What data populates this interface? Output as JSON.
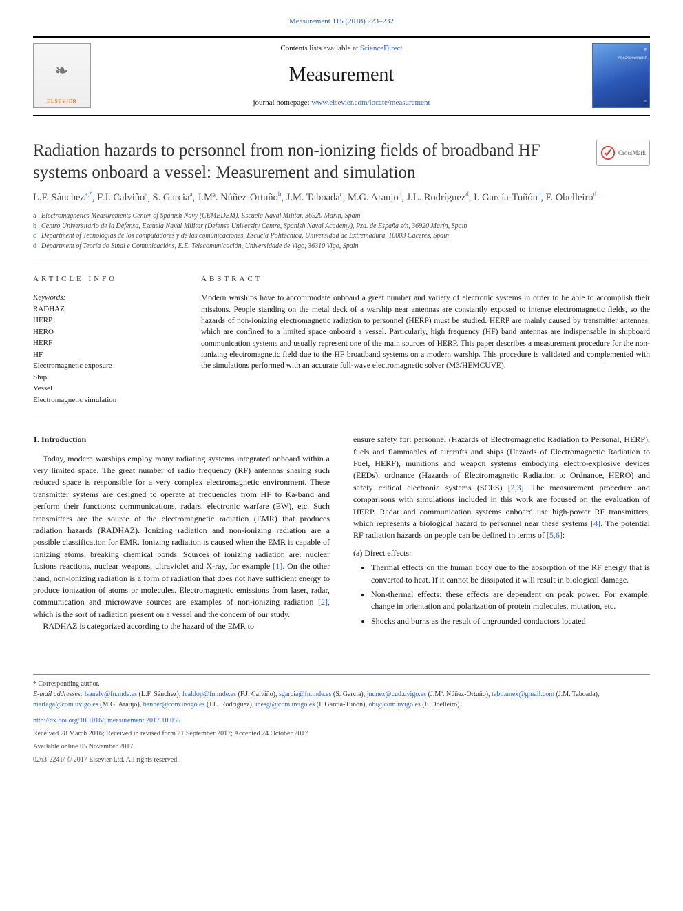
{
  "citation": {
    "text": "Measurement 115 (2018) 223–232",
    "link_color": "#2b5fc7"
  },
  "header": {
    "contents_prefix": "Contents lists available at ",
    "contents_link": "ScienceDirect",
    "journal_title": "Measurement",
    "homepage_prefix": "journal homepage: ",
    "homepage_url": "www.elsevier.com/locate/measurement",
    "elsevier_label": "ELSEVIER",
    "cover_label": "Measurement"
  },
  "crossmark_label": "CrossMark",
  "article": {
    "title": "Radiation hazards to personnel from non-ionizing fields of broadband HF systems onboard a vessel: Measurement and simulation",
    "authors_html": "L.F. Sánchez|a,*|, F.J. Calviño|a|, S. Garcia|a|, J.Mª. Núñez-Ortuño|b|, J.M. Taboada|c|, M.G. Araujo|d|, J.L. Rodríguez|d|, I. García-Tuñón|d|, F. Obelleiro|d|",
    "affiliations": [
      {
        "key": "a",
        "text": "Electromagnetics Measurements Center of Spanish Navy (CEMEDEM), Escuela Naval Militar, 36920 Marín, Spain"
      },
      {
        "key": "b",
        "text": "Centro Universitario de la Defensa, Escuela Naval Militar (Defense University Centre, Spanish Naval Academy), Pza. de España s/n, 36920 Marín, Spain"
      },
      {
        "key": "c",
        "text": "Department of Tecnologías de los computadores y de las comunicaciones, Escuela Politécnica, Universidad de Extremadura, 10003 Cáceres, Spain"
      },
      {
        "key": "d",
        "text": "Department of Teoría do Sinal e Comunicacións, E.E. Telecomunicación, Universidade de Vigo, 36310 Vigo, Spain"
      }
    ]
  },
  "article_info": {
    "heading": "ARTICLE INFO",
    "kw_label": "Keywords:",
    "keywords": [
      "RADHAZ",
      "HERP",
      "HERO",
      "HERF",
      "HF",
      "Electromagnetic exposure",
      "Ship",
      "Vessel",
      "Electromagnetic simulation"
    ]
  },
  "abstract": {
    "heading": "ABSTRACT",
    "text": "Modern warships have to accommodate onboard a great number and variety of electronic systems in order to be able to accomplish their missions. People standing on the metal deck of a warship near antennas are constantly exposed to intense electromagnetic fields, so the hazards of non-ionizing electromagnetic radiation to personnel (HERP) must be studied. HERP are mainly caused by transmitter antennas, which are confined to a limited space onboard a vessel. Particularly, high frequency (HF) band antennas are indispensable in shipboard communication systems and usually represent one of the main sources of HERP. This paper describes a measurement procedure for the non-ionizing electromagnetic field due to the HF broadband systems on a modern warship. This procedure is validated and complemented with the simulations performed with an accurate full-wave electromagnetic solver (M3/HEMCUVE)."
  },
  "intro": {
    "heading": "1. Introduction",
    "p1": "Today, modern warships employ many radiating systems integrated onboard within a very limited space. The great number of radio frequency (RF) antennas sharing such reduced space is responsible for a very complex electromagnetic environment. These transmitter systems are designed to operate at frequencies from HF to Ka-band and perform their functions: communications, radars, electronic warfare (EW), etc. Such transmitters are the source of the electromagnetic radiation (EMR) that produces radiation hazards (RADHAZ). Ionizing radiation and non-ionizing radiation are a possible classification for EMR. Ionizing radiation is caused when the EMR is capable of ionizing atoms, breaking chemical bonds. Sources of ionizing radiation are: nuclear fusions reactions, nuclear weapons, ultraviolet and X-ray, for example ",
    "ref1": "[1]",
    "p1b": ". On the other hand, non-ionizing radiation is a form of radiation that does not have sufficient energy to produce ionization of atoms or molecules. Electromagnetic emissions from laser, radar, communication and microwave sources are examples of non-ionizing radiation ",
    "ref2": "[2]",
    "p1c": ", which is the sort of radiation present on a vessel and the concern of our study.",
    "p2": "RADHAZ is categorized according to the hazard of the EMR to",
    "right_p1a": "ensure safety for: personnel (Hazards of Electromagnetic Radiation to Personal, HERP), fuels and flammables of aircrafts and ships (Hazards of Electromagnetic Radiation to Fuel, HERF), munitions and weapon systems embodying electro-explosive devices (EEDs), ordnance (Hazards of Electromagnetic Radiation to Ordnance, HERO) and safety critical electronic systems (SCES) ",
    "ref23": "[2,3]",
    "right_p1b": ". The measurement procedure and comparisons with simulations included in this work are focused on the evaluation of HERP. Radar and communication systems onboard use high-power RF transmitters, which represents a biological hazard to personnel near these systems ",
    "ref4": "[4]",
    "right_p1c": ". The potential RF radiation hazards on people can be defined in terms of ",
    "ref56": "[5,6]",
    "right_p1d": ":",
    "direct_label": "(a) Direct effects:",
    "bullets": [
      "Thermal effects on the human body due to the absorption of the RF energy that is converted to heat. If it cannot be dissipated it will result in biological damage.",
      "Non-thermal effects: these effects are dependent on peak power. For example: change in orientation and polarization of protein molecules, mutation, etc.",
      "Shocks and burns as the result of ungrounded conductors located"
    ]
  },
  "footer": {
    "corresponding": "* Corresponding author.",
    "email_label": "E-mail addresses:",
    "emails": [
      {
        "addr": "lsanalv@fn.mde.es",
        "who": "(L.F. Sánchez)"
      },
      {
        "addr": "fcaldop@fn.mde.es",
        "who": "(F.J. Calviño)"
      },
      {
        "addr": "sgarcia@fn.mde.es",
        "who": "(S. Garcia)"
      },
      {
        "addr": "jnunez@cud.uvigo.es",
        "who": "(J.Mª. Núñez-Ortuño)"
      },
      {
        "addr": "tabo.unex@gmail.com",
        "who": "(J.M. Taboada)"
      },
      {
        "addr": "martaga@com.uvigo.es",
        "who": "(M.G. Araujo)"
      },
      {
        "addr": "banner@com.uvigo.es",
        "who": "(J.L. Rodríguez)"
      },
      {
        "addr": "inesgt@com.uvigo.es",
        "who": "(I. García-Tuñón)"
      },
      {
        "addr": "obi@com.uvigo.es",
        "who": "(F. Obelleiro)"
      }
    ],
    "doi": "http://dx.doi.org/10.1016/j.measurement.2017.10.055",
    "dates": "Received 28 March 2016; Received in revised form 21 September 2017; Accepted 24 October 2017",
    "online": "Available online 05 November 2017",
    "copyright": "0263-2241/ © 2017 Elsevier Ltd. All rights reserved."
  },
  "colors": {
    "link": "#2b5fc7",
    "text": "#1a1a1a",
    "cover_grad_from": "#6aa6e8",
    "cover_grad_to": "#1a3a85"
  }
}
